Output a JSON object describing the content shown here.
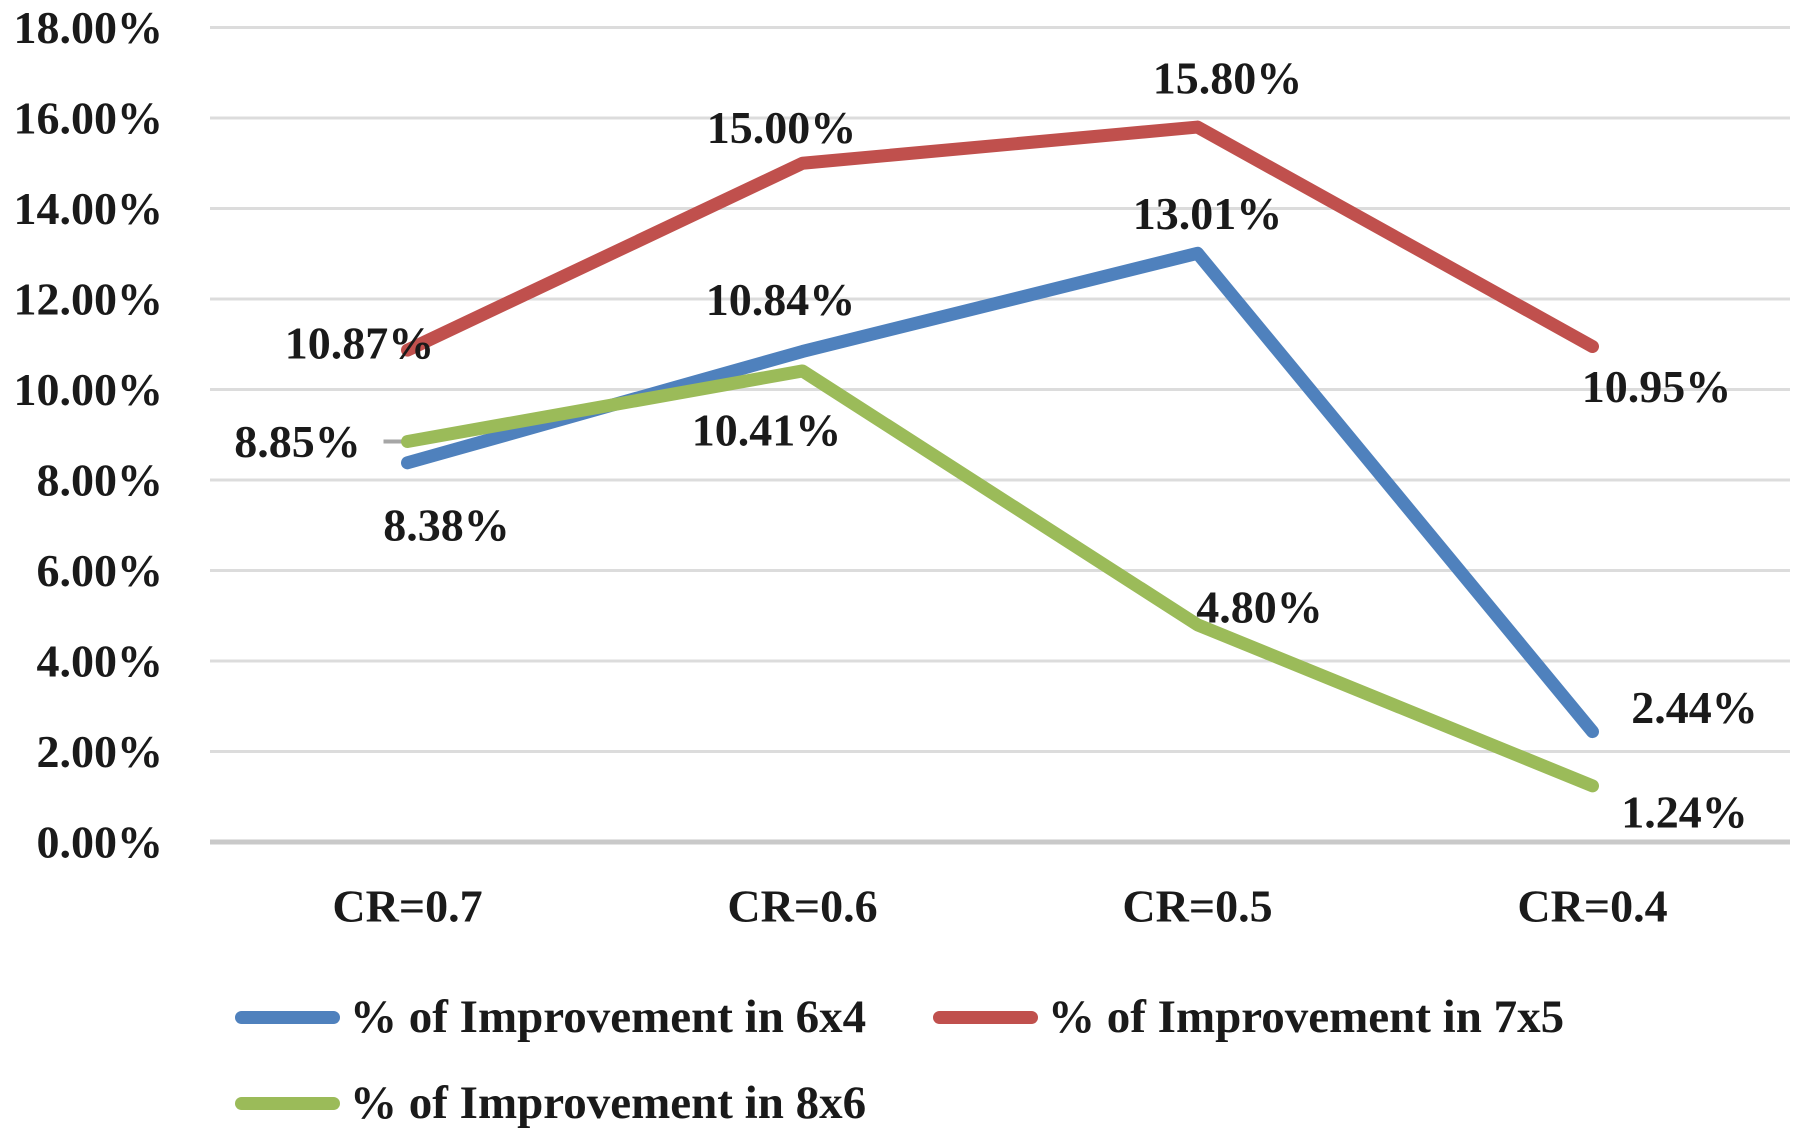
{
  "chart_data": {
    "type": "line",
    "title": "",
    "xlabel": "",
    "ylabel": "",
    "categories": [
      "CR=0.7",
      "CR=0.6",
      "CR=0.5",
      "CR=0.4"
    ],
    "series": [
      {
        "name": "% of Improvement in 6x4",
        "color": "#4F81BD",
        "values": [
          8.38,
          10.84,
          13.01,
          2.44
        ],
        "labels": [
          "8.38%",
          "10.84%",
          "13.01%",
          "2.44%"
        ],
        "label_offsets": [
          [
            39,
            62
          ],
          [
            -22,
            -52
          ],
          [
            10,
            -40
          ],
          [
            102,
            -24
          ]
        ]
      },
      {
        "name": "% of Improvement in 7x5",
        "color": "#C0504D",
        "values": [
          10.87,
          15.0,
          15.8,
          10.95
        ],
        "labels": [
          "10.87%",
          "15.00%",
          "15.80%",
          "10.95%"
        ],
        "label_offsets": [
          [
            -48,
            -7
          ],
          [
            -21,
            -36
          ],
          [
            30,
            -49
          ],
          [
            64,
            40
          ]
        ]
      },
      {
        "name": "% of Improvement in 8x6",
        "color": "#9BBB59",
        "values": [
          8.85,
          10.41,
          4.8,
          1.24
        ],
        "labels": [
          "8.85%",
          "10.41%",
          "4.80%",
          "1.24%"
        ],
        "label_offsets": [
          [
            -110,
            0
          ],
          [
            -36,
            59
          ],
          [
            62,
            -18
          ],
          [
            92,
            26
          ]
        ],
        "leader_points": [
          0
        ]
      }
    ],
    "y_ticks": [
      "0.00%",
      "2.00%",
      "4.00%",
      "6.00%",
      "8.00%",
      "10.00%",
      "12.00%",
      "14.00%",
      "16.00%",
      "18.00%"
    ],
    "ylim": [
      0,
      18
    ],
    "y_step": 2,
    "grid": true,
    "legend_position": "bottom",
    "colors": {
      "gridline": "#DCDCDC",
      "axis_line": "#C9C9C9",
      "text": "#1A1A1A",
      "leader_line": "#A6A6A6"
    }
  }
}
